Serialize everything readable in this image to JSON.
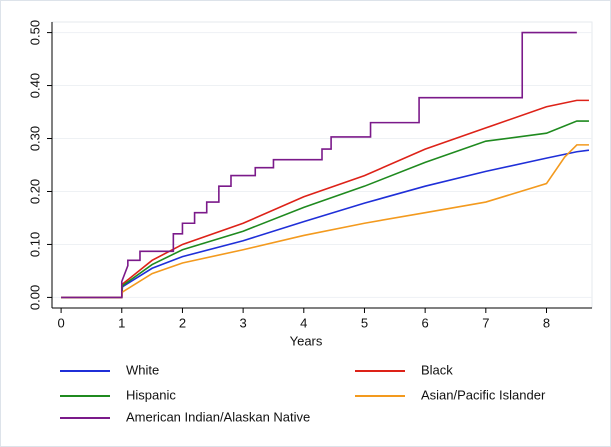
{
  "chart_data": {
    "type": "line",
    "x_label": "Years",
    "xlim": [
      -0.15,
      8.75
    ],
    "xticks": [
      0,
      1,
      2,
      3,
      4,
      5,
      6,
      7,
      8
    ],
    "ylim": [
      -0.02,
      0.52
    ],
    "yticks": [
      {
        "value": 0,
        "label": "0.00"
      },
      {
        "value": 0.1,
        "label": "0.10"
      },
      {
        "value": 0.2,
        "label": "0.20"
      },
      {
        "value": 0.3,
        "label": "0.30"
      },
      {
        "value": 0.4,
        "label": "0.40"
      },
      {
        "value": 0.5,
        "label": "0.50"
      }
    ],
    "grid": true,
    "series": [
      {
        "name": "White",
        "color": "#1f2fd8",
        "x": [
          0,
          1,
          1.01,
          1.5,
          2,
          3,
          4,
          5,
          6,
          7,
          8,
          8.5,
          8.7
        ],
        "values": [
          0,
          0,
          0.02,
          0.055,
          0.077,
          0.107,
          0.143,
          0.178,
          0.21,
          0.238,
          0.263,
          0.275,
          0.278
        ]
      },
      {
        "name": "Black",
        "color": "#dd2218",
        "x": [
          0,
          1,
          1.01,
          1.5,
          2,
          3,
          4,
          5,
          6,
          7,
          8,
          8.5,
          8.7
        ],
        "values": [
          0,
          0,
          0.025,
          0.07,
          0.1,
          0.14,
          0.19,
          0.23,
          0.28,
          0.32,
          0.36,
          0.372,
          0.372
        ]
      },
      {
        "name": "Hispanic",
        "color": "#1f8a1f",
        "x": [
          0,
          1,
          1.01,
          1.5,
          2,
          3,
          4,
          5,
          6,
          7,
          8,
          8.5,
          8.7
        ],
        "values": [
          0,
          0,
          0.022,
          0.062,
          0.09,
          0.125,
          0.17,
          0.21,
          0.255,
          0.295,
          0.31,
          0.333,
          0.333
        ]
      },
      {
        "name": "Asian/Pacific Islander",
        "color": "#f39a1e",
        "x": [
          0,
          1,
          1.01,
          1.5,
          2,
          3,
          4,
          5,
          6,
          7,
          8,
          8.3,
          8.5,
          8.7
        ],
        "values": [
          0,
          0,
          0.01,
          0.045,
          0.065,
          0.09,
          0.117,
          0.14,
          0.16,
          0.18,
          0.215,
          0.265,
          0.288,
          0.288
        ]
      },
      {
        "name": "American Indian/Alaskan Native",
        "color": "#7b1a8a",
        "x": [
          0,
          1,
          1,
          1.1,
          1.1,
          1.3,
          1.3,
          1.85,
          1.85,
          2,
          2,
          2.2,
          2.2,
          2.4,
          2.4,
          2.6,
          2.6,
          2.8,
          2.8,
          3.2,
          3.2,
          3.5,
          3.5,
          4.3,
          4.3,
          4.45,
          4.45,
          5.1,
          5.1,
          5.9,
          5.9,
          7.6,
          7.6,
          8.5
        ],
        "values": [
          0,
          0,
          0.03,
          0.06,
          0.07,
          0.07,
          0.087,
          0.087,
          0.12,
          0.12,
          0.14,
          0.14,
          0.16,
          0.16,
          0.18,
          0.18,
          0.21,
          0.21,
          0.23,
          0.23,
          0.245,
          0.245,
          0.26,
          0.26,
          0.28,
          0.28,
          0.303,
          0.303,
          0.33,
          0.33,
          0.377,
          0.377,
          0.5,
          0.5
        ]
      }
    ]
  }
}
